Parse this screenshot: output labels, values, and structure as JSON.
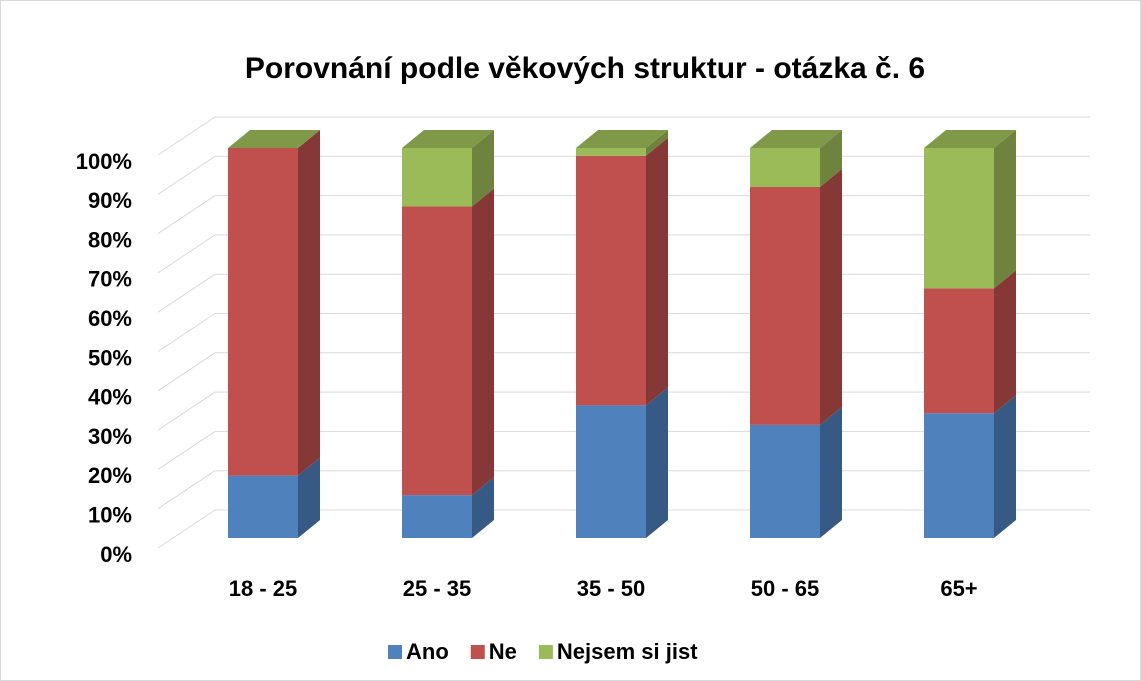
{
  "chart_data": {
    "type": "bar3d_stacked",
    "title": "Porovnání podle věkových struktur - otázka č. 6",
    "categories": [
      "18 - 25",
      "25 - 35",
      "35 - 50",
      "50 - 65",
      "65+"
    ],
    "series": [
      {
        "name": "Ano",
        "color": "#4f81bd",
        "values": [
          16,
          11,
          34,
          29,
          32
        ]
      },
      {
        "name": "Ne",
        "color": "#c0504d",
        "values": [
          84,
          74,
          64,
          61,
          32
        ]
      },
      {
        "name": "Nejsem si jist",
        "color": "#9bbb59",
        "values": [
          0,
          15,
          2,
          10,
          36
        ]
      }
    ],
    "ylim": [
      0,
      100
    ],
    "yticks": [
      {
        "value": 0,
        "label": "0%"
      },
      {
        "value": 10,
        "label": "10%"
      },
      {
        "value": 20,
        "label": "20%"
      },
      {
        "value": 30,
        "label": "30%"
      },
      {
        "value": 40,
        "label": "40%"
      },
      {
        "value": 50,
        "label": "50%"
      },
      {
        "value": 60,
        "label": "60%"
      },
      {
        "value": 70,
        "label": "70%"
      },
      {
        "value": 80,
        "label": "80%"
      },
      {
        "value": 90,
        "label": "90%"
      },
      {
        "value": 100,
        "label": "100%"
      }
    ],
    "grid": true
  }
}
